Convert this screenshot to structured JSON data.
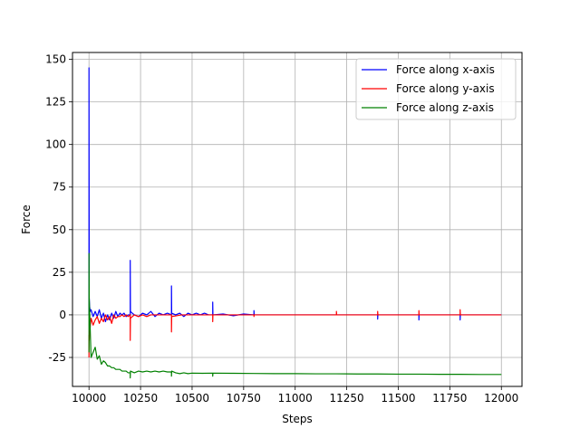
{
  "chart_data": {
    "type": "line",
    "title": "",
    "xlabel": "Steps",
    "ylabel": "Force",
    "xlim": [
      9920,
      12100
    ],
    "ylim": [
      -42,
      154
    ],
    "xticks": [
      10000,
      10250,
      10500,
      10750,
      11000,
      11250,
      11500,
      11750,
      12000
    ],
    "yticks": [
      -25,
      0,
      25,
      50,
      75,
      100,
      125,
      150
    ],
    "grid": true,
    "legend_position": "top-right",
    "series": [
      {
        "name": "Force along x-axis",
        "color": "#0000ff",
        "x": [
          10000,
          10000,
          10001,
          10003,
          10006,
          10010,
          10015,
          10020,
          10030,
          10040,
          10050,
          10060,
          10070,
          10080,
          10090,
          10100,
          10110,
          10120,
          10130,
          10140,
          10150,
          10160,
          10170,
          10180,
          10190,
          10200,
          10200,
          10201,
          10210,
          10220,
          10240,
          10260,
          10280,
          10300,
          10320,
          10340,
          10360,
          10380,
          10400,
          10400,
          10401,
          10420,
          10440,
          10460,
          10480,
          10500,
          10520,
          10540,
          10560,
          10580,
          10600,
          10600,
          10601,
          10650,
          10700,
          10750,
          10800,
          10800,
          10801,
          10900,
          11000,
          11100,
          11200,
          11300,
          11400,
          11400,
          11401,
          11500,
          11600,
          11600,
          11601,
          11700,
          11800,
          11800,
          11801,
          11900,
          12000
        ],
        "y": [
          0,
          145,
          10,
          5,
          2,
          3,
          1,
          -1,
          2,
          -1,
          3,
          -2,
          1,
          -4,
          0,
          -3,
          1,
          -2,
          2,
          -1,
          1,
          0,
          1,
          -1,
          0,
          0,
          32,
          2,
          1,
          0,
          -1,
          1,
          0,
          2,
          -1,
          1,
          0,
          1,
          0,
          17,
          1,
          0,
          1,
          -1,
          1,
          0,
          1,
          0,
          1,
          0,
          0,
          7.5,
          0,
          0.5,
          -0.5,
          0.5,
          0,
          2.5,
          0,
          0,
          0,
          0,
          0,
          0,
          0,
          -2.5,
          0,
          0,
          0,
          -3,
          0,
          0,
          0,
          -3,
          0,
          0,
          0
        ]
      },
      {
        "name": "Force along y-axis",
        "color": "#ff0000",
        "x": [
          10000,
          10000,
          10001,
          10005,
          10010,
          10020,
          10030,
          10040,
          10050,
          10060,
          10070,
          10080,
          10090,
          10100,
          10110,
          10120,
          10130,
          10140,
          10150,
          10160,
          10170,
          10180,
          10190,
          10200,
          10200,
          10201,
          10220,
          10240,
          10260,
          10280,
          10300,
          10320,
          10340,
          10360,
          10380,
          10400,
          10400,
          10401,
          10450,
          10500,
          10550,
          10600,
          10600,
          10601,
          10700,
          10800,
          10800,
          10801,
          10900,
          11000,
          11100,
          11200,
          11200,
          11201,
          11300,
          11400,
          11400,
          11401,
          11500,
          11600,
          11600,
          11601,
          11700,
          11800,
          11800,
          11801,
          11900,
          12000
        ],
        "y": [
          -25,
          -12,
          -15,
          -8,
          -2,
          -6,
          -3,
          -1,
          -5,
          -2,
          -4,
          0,
          -3,
          -1,
          -5,
          0,
          -2,
          -1,
          -1,
          0,
          -1,
          0,
          -1,
          0,
          -15,
          -2,
          0,
          -1,
          0,
          -1,
          0,
          0,
          0,
          0,
          0,
          0,
          -10,
          -1,
          0,
          0,
          0,
          0,
          -4,
          0,
          0,
          0,
          -1,
          0,
          0,
          0,
          0,
          0,
          2,
          0,
          0,
          0,
          2,
          0,
          0,
          0,
          2.5,
          0,
          0,
          0,
          3,
          0,
          0,
          0
        ]
      },
      {
        "name": "Force along z-axis",
        "color": "#008000",
        "x": [
          10000,
          10000,
          10001,
          10005,
          10010,
          10020,
          10030,
          10040,
          10050,
          10060,
          10070,
          10080,
          10090,
          10100,
          10110,
          10120,
          10130,
          10140,
          10150,
          10160,
          10170,
          10180,
          10190,
          10200,
          10200,
          10201,
          10220,
          10240,
          10260,
          10280,
          10300,
          10320,
          10340,
          10360,
          10380,
          10400,
          10400,
          10401,
          10420,
          10440,
          10460,
          10480,
          10500,
          10550,
          10600,
          10600,
          10601,
          10700,
          10800,
          10900,
          11000,
          11100,
          11200,
          11300,
          11400,
          11500,
          11600,
          11700,
          11800,
          11900,
          12000
        ],
        "y": [
          -22,
          36,
          10,
          -5,
          -25,
          -22,
          -19,
          -26,
          -24,
          -29,
          -27,
          -28,
          -30,
          -30,
          -31,
          -31,
          -32,
          -32,
          -32,
          -33,
          -33,
          -33,
          -34,
          -34,
          -37,
          -33,
          -34,
          -33,
          -33.5,
          -33,
          -33.5,
          -33,
          -33.5,
          -33,
          -33.5,
          -33.5,
          -36,
          -33,
          -34,
          -34.5,
          -34,
          -34.5,
          -34.2,
          -34.3,
          -34.2,
          -36,
          -34.2,
          -34.3,
          -34.4,
          -34.5,
          -34.5,
          -34.6,
          -34.6,
          -34.7,
          -34.7,
          -34.8,
          -34.8,
          -34.9,
          -34.9,
          -35,
          -35
        ]
      }
    ]
  }
}
